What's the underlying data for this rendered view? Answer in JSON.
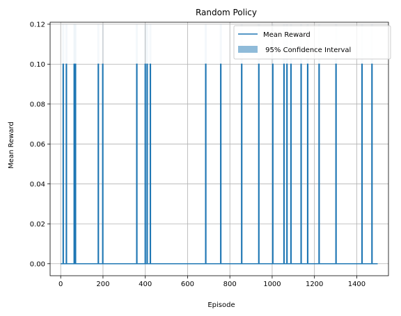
{
  "chart_data": {
    "type": "line",
    "title": "Random Policy",
    "xlabel": "Episode",
    "ylabel": "Mean Reward",
    "xlim": [
      -50,
      1550
    ],
    "ylim": [
      -0.006,
      0.121
    ],
    "xticks": [
      0,
      200,
      400,
      600,
      800,
      1000,
      1200,
      1400
    ],
    "xtick_labels": [
      "0",
      "200",
      "400",
      "600",
      "800",
      "1000",
      "1200",
      "1400"
    ],
    "yticks": [
      0.0,
      0.02,
      0.04,
      0.06,
      0.08,
      0.1,
      0.12
    ],
    "ytick_labels": [
      "0.00",
      "0.02",
      "0.04",
      "0.06",
      "0.08",
      "0.10",
      "0.12"
    ],
    "grid": true,
    "legend_position": "top-right",
    "colors": {
      "line": "#1f77b4",
      "band": "#1f77b4"
    },
    "series": [
      {
        "name": "Mean Reward",
        "kind": "line",
        "x_range": [
          0,
          1499
        ],
        "baseline_value": 0.0,
        "spikes": [
          {
            "x": 12,
            "y": 0.1
          },
          {
            "x": 27,
            "y": 0.1
          },
          {
            "x": 64,
            "y": 0.1
          },
          {
            "x": 70,
            "y": 0.1
          },
          {
            "x": 178,
            "y": 0.1
          },
          {
            "x": 199,
            "y": 0.1
          },
          {
            "x": 360,
            "y": 0.1
          },
          {
            "x": 400,
            "y": 0.1
          },
          {
            "x": 409,
            "y": 0.1
          },
          {
            "x": 424,
            "y": 0.1
          },
          {
            "x": 686,
            "y": 0.1
          },
          {
            "x": 757,
            "y": 0.1
          },
          {
            "x": 856,
            "y": 0.1
          },
          {
            "x": 937,
            "y": 0.1
          },
          {
            "x": 1003,
            "y": 0.1
          },
          {
            "x": 1056,
            "y": 0.1
          },
          {
            "x": 1070,
            "y": 0.1
          },
          {
            "x": 1089,
            "y": 0.1
          },
          {
            "x": 1137,
            "y": 0.1
          },
          {
            "x": 1168,
            "y": 0.1
          },
          {
            "x": 1222,
            "y": 0.1
          },
          {
            "x": 1302,
            "y": 0.1
          },
          {
            "x": 1425,
            "y": 0.1
          },
          {
            "x": 1472,
            "y": 0.1
          }
        ]
      },
      {
        "name": " 95% Confidence Interval",
        "kind": "band"
      }
    ]
  }
}
